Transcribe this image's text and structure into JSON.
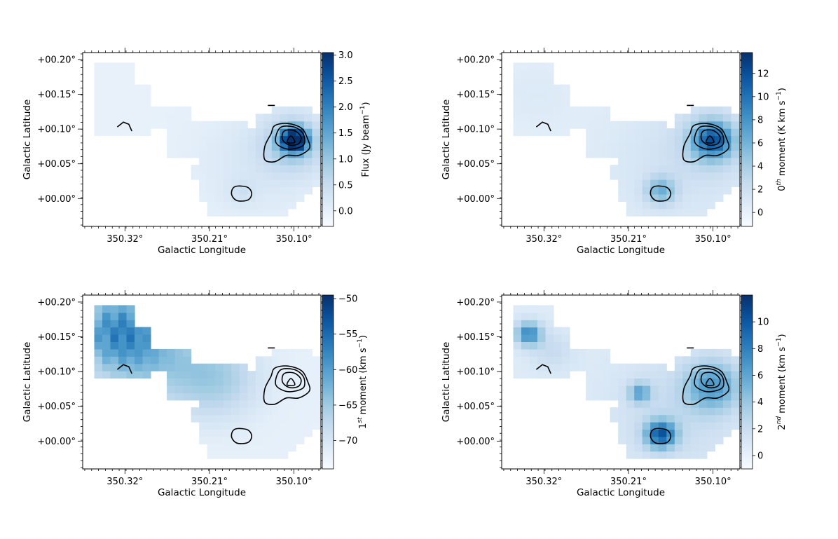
{
  "chart_data": [
    {
      "type": "heatmap",
      "panel": "top-left",
      "xlabel": "Galactic Longitude",
      "ylabel": "Galactic Latitude",
      "xticks": [
        "350.32°",
        "350.21°",
        "350.10°"
      ],
      "yticks": [
        "+00.20°",
        "+00.15°",
        "+00.10°",
        "+00.05°",
        "+00.00°"
      ],
      "colorbar": {
        "label_pre": "Flux (Jy beam",
        "label_sup": "−1",
        "label_post": ")",
        "range": [
          -0.3,
          3.05
        ],
        "ticks": [
          "3.0",
          "2.5",
          "2.0",
          "1.5",
          "1.0",
          "0.5",
          "0.0"
        ]
      },
      "map": "flux"
    },
    {
      "type": "heatmap",
      "panel": "top-right",
      "xlabel": "Galactic Longitude",
      "ylabel": "Galactic Latitude",
      "xticks": [
        "350.32°",
        "350.21°",
        "350.10°"
      ],
      "yticks": [
        "+00.20°",
        "+00.15°",
        "+00.10°",
        "+00.05°",
        "+00.00°"
      ],
      "colorbar": {
        "label_pre": "0",
        "label_sup": "th",
        "label_post": " moment (K km s",
        "label_sup2": "−1",
        "label_post2": ")",
        "range": [
          -1.2,
          13.8
        ],
        "ticks": [
          "12",
          "10",
          "8",
          "6",
          "4",
          "2",
          "0"
        ]
      },
      "map": "mom0"
    },
    {
      "type": "heatmap",
      "panel": "bottom-left",
      "xlabel": "Galactic Longitude",
      "ylabel": "Galactic Latitude",
      "xticks": [
        "350.32°",
        "350.21°",
        "350.10°"
      ],
      "yticks": [
        "+00.20°",
        "+00.15°",
        "+00.10°",
        "+00.05°",
        "+00.00°"
      ],
      "colorbar": {
        "label_pre": "1",
        "label_sup": "st",
        "label_post": " moment (km s",
        "label_sup2": "−1",
        "label_post2": ")",
        "range": [
          -74,
          -49.5
        ],
        "ticks": [
          "−50",
          "−55",
          "−60",
          "−65",
          "−70"
        ]
      },
      "map": "mom1"
    },
    {
      "type": "heatmap",
      "panel": "bottom-right",
      "xlabel": "Galactic Longitude",
      "ylabel": "Galactic Latitude",
      "xticks": [
        "350.32°",
        "350.21°",
        "350.10°"
      ],
      "yticks": [
        "+00.20°",
        "+00.15°",
        "+00.10°",
        "+00.05°",
        "+00.00°"
      ],
      "colorbar": {
        "label_pre": "2",
        "label_sup": "nd",
        "label_post": " moment (km s",
        "label_sup2": "−1",
        "label_post2": ")",
        "range": [
          -1,
          12
        ],
        "ticks": [
          "10",
          "8",
          "6",
          "4",
          "2",
          "0"
        ]
      },
      "map": "mom2"
    }
  ],
  "colors": {
    "cmap_low": "#f7fbff",
    "cmap_mid": "#6baed6",
    "cmap_high": "#08306b",
    "contour": "#000000"
  }
}
